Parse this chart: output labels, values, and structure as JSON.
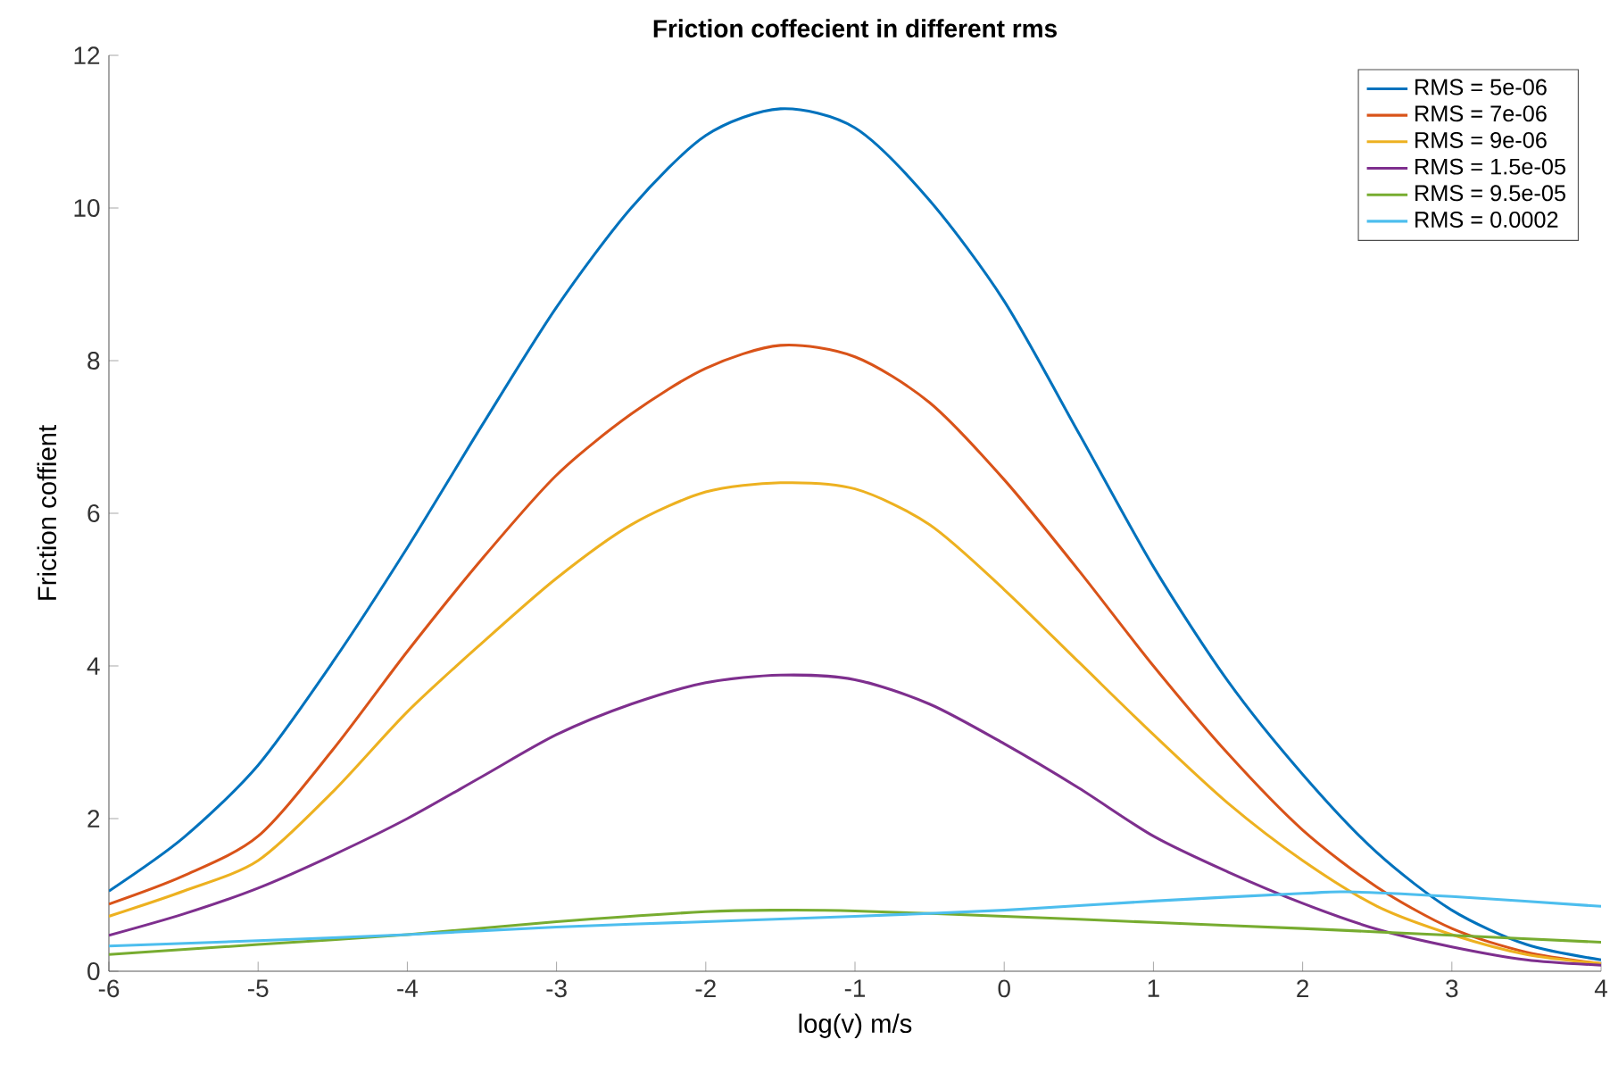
{
  "chart_data": {
    "type": "line",
    "title": "Friction coffecient in different rms",
    "xlabel": "log(v) m/s",
    "ylabel": "Friction coffient",
    "x": [
      -6,
      -5.5,
      -5,
      -4.5,
      -4,
      -3.5,
      -3,
      -2.5,
      -2,
      -1.5,
      -1,
      -0.5,
      0,
      0.5,
      1,
      1.5,
      2,
      2.5,
      3,
      3.5,
      4
    ],
    "series": [
      {
        "name": "RMS = 5e-06",
        "color": "#0072bd",
        "values": [
          1.05,
          1.75,
          2.7,
          4.05,
          5.55,
          7.15,
          8.7,
          10.0,
          10.95,
          11.3,
          11.05,
          10.1,
          8.78,
          7.05,
          5.3,
          3.8,
          2.58,
          1.55,
          0.8,
          0.35,
          0.15
        ]
      },
      {
        "name": "RMS = 7e-06",
        "color": "#d95319",
        "values": [
          0.88,
          1.25,
          1.77,
          2.9,
          4.19,
          5.4,
          6.5,
          7.3,
          7.9,
          8.2,
          8.05,
          7.45,
          6.44,
          5.25,
          4.0,
          2.85,
          1.85,
          1.1,
          0.56,
          0.25,
          0.1
        ]
      },
      {
        "name": "RMS = 9e-06",
        "color": "#edb120",
        "values": [
          0.72,
          1.05,
          1.45,
          2.35,
          3.4,
          4.3,
          5.15,
          5.85,
          6.28,
          6.4,
          6.32,
          5.85,
          5.0,
          4.05,
          3.1,
          2.2,
          1.45,
          0.85,
          0.48,
          0.22,
          0.1
        ]
      },
      {
        "name": "RMS = 1.5e-05",
        "color": "#7e2f8e",
        "values": [
          0.47,
          0.75,
          1.09,
          1.52,
          2.0,
          2.55,
          3.1,
          3.5,
          3.78,
          3.88,
          3.82,
          3.5,
          2.98,
          2.4,
          1.77,
          1.3,
          0.89,
          0.55,
          0.32,
          0.15,
          0.08
        ]
      },
      {
        "name": "RMS = 9.5e-05",
        "color": "#77ac30",
        "x": [
          -6,
          -5,
          -4,
          -3,
          -2,
          -1.5,
          -1,
          0,
          1,
          2,
          3,
          4
        ],
        "values": [
          0.22,
          0.35,
          0.48,
          0.65,
          0.78,
          0.8,
          0.79,
          0.72,
          0.64,
          0.56,
          0.47,
          0.38
        ]
      },
      {
        "name": "RMS = 0.0002",
        "color": "#4dbeee",
        "x": [
          -6,
          -5,
          -4,
          -3,
          -2,
          -1,
          0,
          1,
          2,
          2.3,
          3,
          4
        ],
        "values": [
          0.33,
          0.4,
          0.48,
          0.58,
          0.65,
          0.72,
          0.8,
          0.92,
          1.02,
          1.04,
          0.98,
          0.85
        ]
      }
    ],
    "xlim": [
      -6,
      4
    ],
    "ylim": [
      0,
      12
    ],
    "xticks": [
      -6,
      -5,
      -4,
      -3,
      -2,
      -1,
      0,
      1,
      2,
      3,
      4
    ],
    "yticks": [
      0,
      2,
      4,
      6,
      8,
      10,
      12
    ],
    "legend": "top right",
    "marker": "none",
    "line_style": "solid"
  }
}
